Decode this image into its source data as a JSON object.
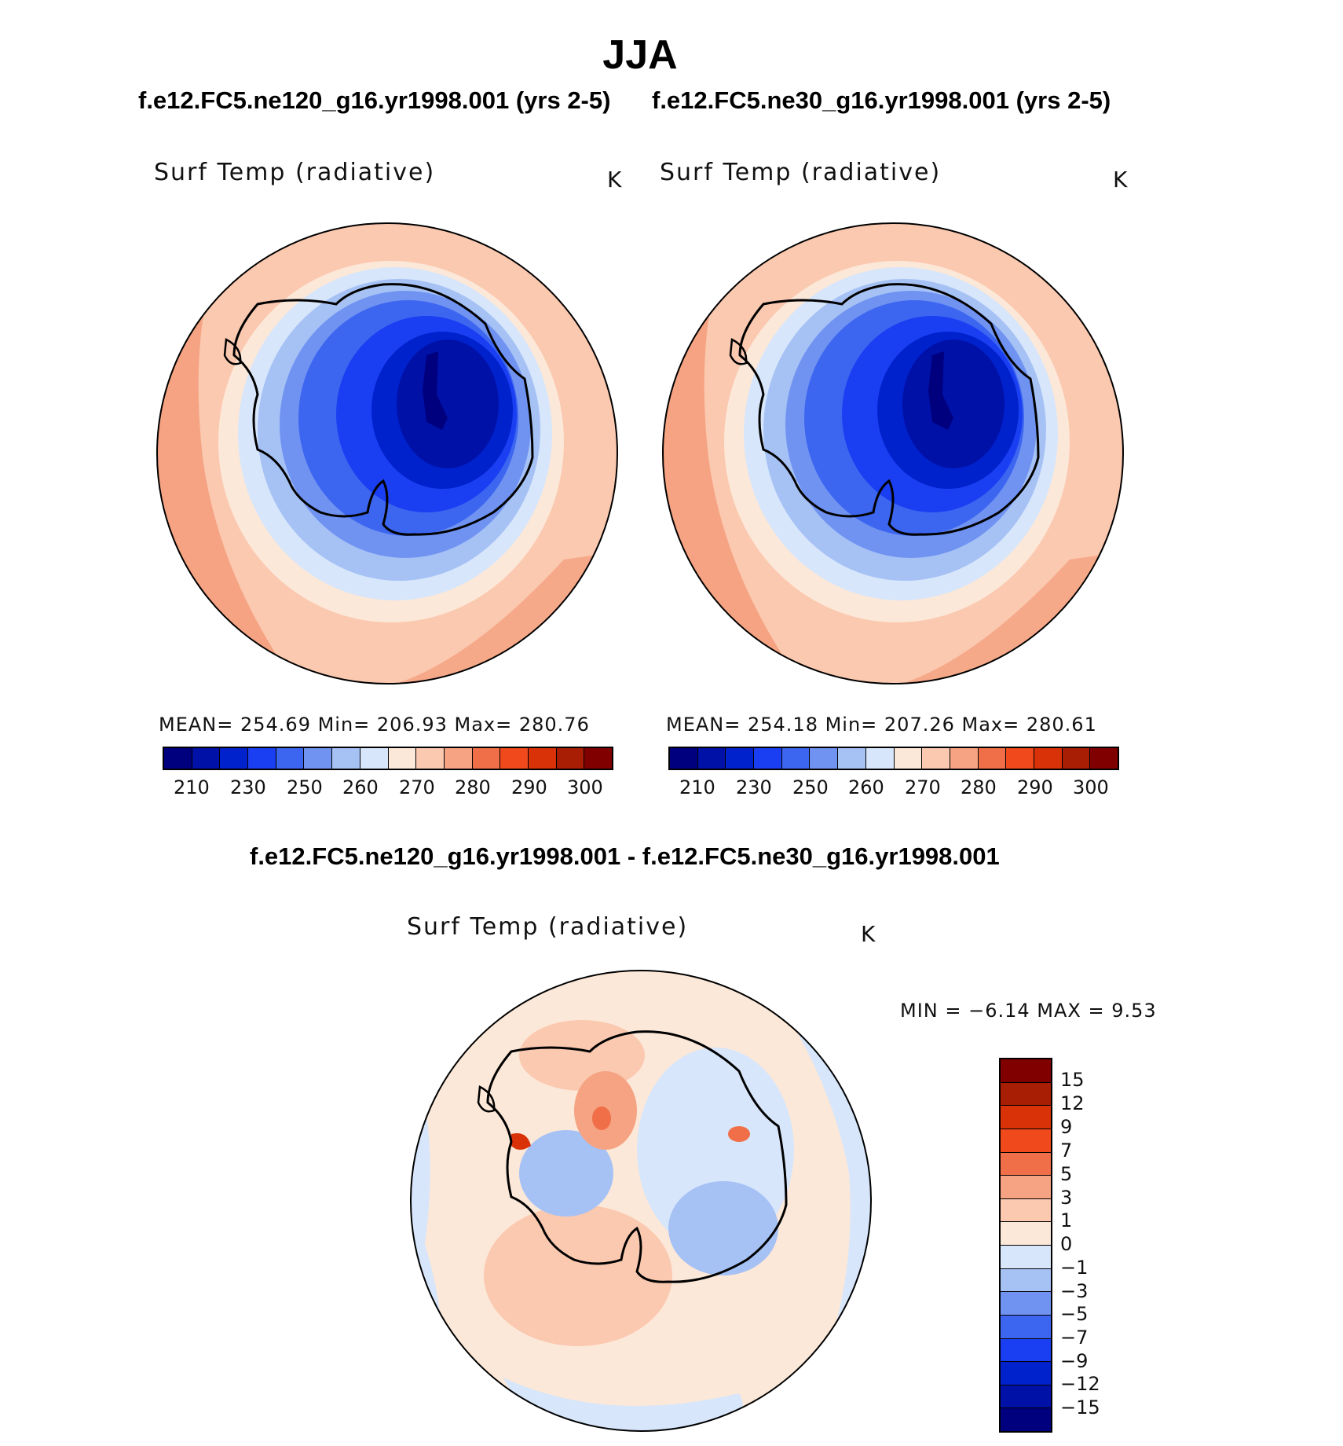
{
  "title": "JJA",
  "colors": {
    "abs_scale": [
      "#00007f",
      "#0011a8",
      "#0022cc",
      "#1a3ff2",
      "#3d66f0",
      "#7093f2",
      "#a6c2f5",
      "#d7e6fb",
      "#fce8d8",
      "#fbc8b0",
      "#f5a382",
      "#f06f48",
      "#f04a1c",
      "#d93208",
      "#a81e05",
      "#800000"
    ],
    "diff_scale": [
      "#800000",
      "#a81e05",
      "#d93208",
      "#f04a1c",
      "#f06f48",
      "#f5a382",
      "#fbc8b0",
      "#fce8d8",
      "#d7e6fb",
      "#a6c2f5",
      "#7093f2",
      "#3d66f0",
      "#1a3ff2",
      "#0022cc",
      "#0011a8",
      "#00007f"
    ]
  },
  "panels": [
    {
      "run": "f.e12.FC5.ne120_g16.yr1998.001 (yrs 2-5)",
      "label": "Surf Temp (radiative)",
      "units": "K",
      "stats": "MEAN= 254.69   Min= 206.93   Max= 280.76",
      "ticks": [
        "210",
        "230",
        "250",
        "260",
        "270",
        "280",
        "290",
        "300"
      ]
    },
    {
      "run": "f.e12.FC5.ne30_g16.yr1998.001 (yrs 2-5)",
      "label": "Surf Temp (radiative)",
      "units": "K",
      "stats": "MEAN= 254.18   Min= 207.26   Max= 280.61",
      "ticks": [
        "210",
        "230",
        "250",
        "260",
        "270",
        "280",
        "290",
        "300"
      ]
    }
  ],
  "diff": {
    "title": "f.e12.FC5.ne120_g16.yr1998.001 - f.e12.FC5.ne30_g16.yr1998.001",
    "label": "Surf Temp (radiative)",
    "units": "K",
    "minmax": "MIN =   −6.14  MAX =     9.53",
    "ticks": [
      "15",
      "12",
      "9",
      "7",
      "5",
      "3",
      "1",
      "0",
      "−1",
      "−3",
      "−5",
      "−7",
      "−9",
      "−12",
      "−15"
    ]
  }
}
